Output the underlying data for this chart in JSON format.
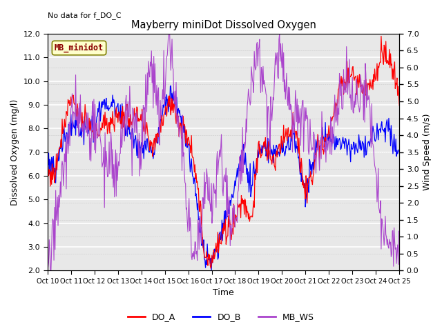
{
  "title": "Mayberry miniDot Dissolved Oxygen",
  "no_data_text": "No data for f_DO_C",
  "xlabel": "Time",
  "ylabel_left": "Dissolved Oxygen (mg/l)",
  "ylabel_right": "Wind Speed (m/s)",
  "ylim_left": [
    2.0,
    12.0
  ],
  "ylim_right": [
    0.0,
    7.0
  ],
  "yticks_left": [
    2.0,
    3.0,
    4.0,
    5.0,
    6.0,
    7.0,
    8.0,
    9.0,
    10.0,
    11.0,
    12.0
  ],
  "yticks_right": [
    0.0,
    0.5,
    1.0,
    1.5,
    2.0,
    2.5,
    3.0,
    3.5,
    4.0,
    4.5,
    5.0,
    5.5,
    6.0,
    6.5,
    7.0
  ],
  "xtick_labels": [
    "Oct 10",
    "Oct 11",
    "Oct 12",
    "Oct 13",
    "Oct 14",
    "Oct 15",
    "Oct 16",
    "Oct 17",
    "Oct 18",
    "Oct 19",
    "Oct 20",
    "Oct 21",
    "Oct 22",
    "Oct 23",
    "Oct 24",
    "Oct 25"
  ],
  "legend_label": "MB_minidot",
  "line_DO_A_color": "#FF0000",
  "line_DO_B_color": "#0000FF",
  "line_MB_WS_color": "#AA44CC",
  "legend_entries": [
    "DO_A",
    "DO_B",
    "MB_WS"
  ],
  "plot_bg_color": "#E8E8E8",
  "n_points": 600,
  "figsize": [
    6.4,
    4.8
  ],
  "dpi": 100
}
